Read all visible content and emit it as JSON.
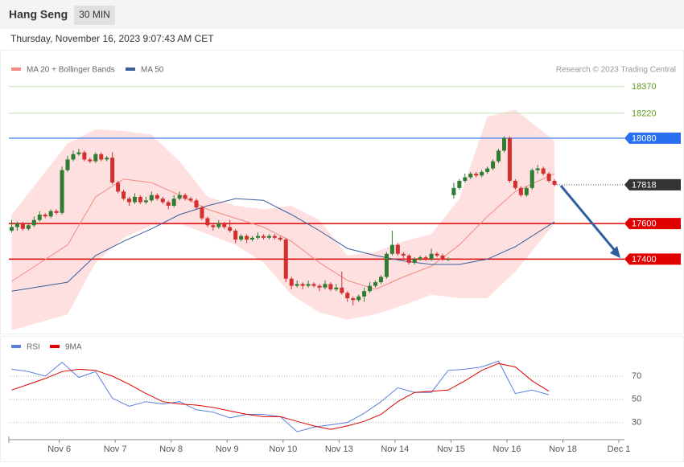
{
  "header": {
    "title": "Hang Seng",
    "interval": "30 MIN",
    "timestamp": "Thursday, November 16, 2023 9:07:43 AM CET"
  },
  "chart_data": [
    {
      "type": "candlestick",
      "credit": "Research © 2023 Trading Central",
      "up_color": "#2e7d32",
      "down_color": "#d32f2f",
      "xlim": [
        -0.5,
        109.5
      ],
      "ylim": [
        16995,
        18450
      ],
      "ohlc": [
        [
          17560,
          17620,
          17550,
          17580
        ],
        [
          17580,
          17610,
          17560,
          17600
        ],
        [
          17600,
          17610,
          17560,
          17570
        ],
        [
          17570,
          17600,
          17560,
          17590
        ],
        [
          17590,
          17640,
          17580,
          17620
        ],
        [
          17620,
          17670,
          17610,
          17650
        ],
        [
          17650,
          17660,
          17630,
          17640
        ],
        [
          17640,
          17680,
          17630,
          17670
        ],
        [
          17670,
          17680,
          17650,
          17660
        ],
        [
          17660,
          17920,
          17650,
          17900
        ],
        [
          17900,
          17980,
          17890,
          17960
        ],
        [
          17960,
          18010,
          17950,
          17990
        ],
        [
          17990,
          18020,
          17980,
          18000
        ],
        [
          18000,
          18010,
          17950,
          17960
        ],
        [
          17960,
          17970,
          17940,
          17950
        ],
        [
          17950,
          18000,
          17940,
          17990
        ],
        [
          17990,
          18000,
          17950,
          17960
        ],
        [
          17960,
          17980,
          17950,
          17970
        ],
        [
          17970,
          18000,
          17820,
          17830
        ],
        [
          17830,
          17840,
          17770,
          17780
        ],
        [
          17780,
          17790,
          17730,
          17740
        ],
        [
          17740,
          17750,
          17700,
          17720
        ],
        [
          17720,
          17770,
          17710,
          17750
        ],
        [
          17750,
          17760,
          17710,
          17720
        ],
        [
          17720,
          17750,
          17710,
          17730
        ],
        [
          17730,
          17780,
          17720,
          17760
        ],
        [
          17760,
          17770,
          17730,
          17740
        ],
        [
          17740,
          17750,
          17710,
          17720
        ],
        [
          17720,
          17730,
          17680,
          17700
        ],
        [
          17700,
          17760,
          17690,
          17740
        ],
        [
          17740,
          17780,
          17730,
          17760
        ],
        [
          17760,
          17770,
          17730,
          17740
        ],
        [
          17740,
          17750,
          17720,
          17730
        ],
        [
          17730,
          17740,
          17680,
          17690
        ],
        [
          17690,
          17700,
          17620,
          17630
        ],
        [
          17630,
          17640,
          17580,
          17590
        ],
        [
          17590,
          17600,
          17560,
          17580
        ],
        [
          17580,
          17620,
          17570,
          17600
        ],
        [
          17600,
          17610,
          17570,
          17580
        ],
        [
          17580,
          17620,
          17550,
          17560
        ],
        [
          17560,
          17570,
          17490,
          17510
        ],
        [
          17510,
          17540,
          17500,
          17530
        ],
        [
          17530,
          17540,
          17490,
          17510
        ],
        [
          17510,
          17530,
          17500,
          17520
        ],
        [
          17520,
          17550,
          17510,
          17530
        ],
        [
          17530,
          17540,
          17510,
          17520
        ],
        [
          17520,
          17540,
          17510,
          17530
        ],
        [
          17530,
          17540,
          17510,
          17520
        ],
        [
          17520,
          17530,
          17500,
          17510
        ],
        [
          17510,
          17520,
          17270,
          17290
        ],
        [
          17290,
          17300,
          17230,
          17250
        ],
        [
          17250,
          17280,
          17240,
          17260
        ],
        [
          17260,
          17270,
          17230,
          17250
        ],
        [
          17250,
          17280,
          17240,
          17260
        ],
        [
          17260,
          17270,
          17240,
          17250
        ],
        [
          17250,
          17260,
          17220,
          17240
        ],
        [
          17240,
          17280,
          17230,
          17260
        ],
        [
          17260,
          17270,
          17220,
          17230
        ],
        [
          17230,
          17260,
          17220,
          17240
        ],
        [
          17240,
          17330,
          17200,
          17210
        ],
        [
          17210,
          17220,
          17160,
          17180
        ],
        [
          17180,
          17190,
          17140,
          17170
        ],
        [
          17170,
          17200,
          17160,
          17190
        ],
        [
          17190,
          17240,
          17160,
          17220
        ],
        [
          17220,
          17270,
          17210,
          17250
        ],
        [
          17250,
          17280,
          17240,
          17270
        ],
        [
          17270,
          17310,
          17260,
          17300
        ],
        [
          17300,
          17440,
          17290,
          17430
        ],
        [
          17430,
          17560,
          17420,
          17480
        ],
        [
          17480,
          17490,
          17420,
          17430
        ],
        [
          17430,
          17440,
          17400,
          17420
        ],
        [
          17420,
          17430,
          17370,
          17380
        ],
        [
          17380,
          17410,
          17370,
          17400
        ],
        [
          17400,
          17420,
          17390,
          17410
        ],
        [
          17410,
          17420,
          17390,
          17400
        ],
        [
          17400,
          17460,
          17390,
          17430
        ],
        [
          17430,
          17440,
          17410,
          17420
        ],
        [
          17420,
          17430,
          17390,
          17400
        ],
        [
          17400,
          17410,
          17390,
          17400
        ],
        [
          17760,
          17830,
          17740,
          17800
        ],
        [
          17800,
          17850,
          17790,
          17840
        ],
        [
          17840,
          17880,
          17830,
          17860
        ],
        [
          17860,
          17890,
          17850,
          17880
        ],
        [
          17880,
          17890,
          17860,
          17870
        ],
        [
          17870,
          17900,
          17860,
          17890
        ],
        [
          17890,
          17920,
          17880,
          17910
        ],
        [
          17910,
          17960,
          17900,
          17950
        ],
        [
          17950,
          18020,
          17940,
          18010
        ],
        [
          18010,
          18090,
          18000,
          18080
        ],
        [
          18080,
          18090,
          17830,
          17840
        ],
        [
          17840,
          17850,
          17790,
          17800
        ],
        [
          17800,
          17810,
          17750,
          17760
        ],
        [
          17760,
          17810,
          17750,
          17800
        ],
        [
          17800,
          17910,
          17790,
          17900
        ],
        [
          17900,
          17930,
          17880,
          17910
        ],
        [
          17910,
          17920,
          17870,
          17880
        ],
        [
          17880,
          17890,
          17830,
          17840
        ],
        [
          17840,
          17850,
          17810,
          17818
        ]
      ],
      "x": [
        0,
        10,
        15,
        20,
        25,
        30,
        35,
        40,
        45,
        50,
        55,
        60,
        65,
        70,
        75,
        80,
        85,
        90,
        97
      ],
      "series": [
        {
          "name": "MA 20 + Bollinger Bands",
          "color": "#f28b82",
          "band_color": "#fde0df",
          "values": [
            17275,
            17480,
            17750,
            17850,
            17830,
            17760,
            17680,
            17630,
            17580,
            17500,
            17380,
            17280,
            17230,
            17300,
            17360,
            17480,
            17640,
            17780,
            17880
          ],
          "upper": [
            17650,
            18050,
            18130,
            18120,
            18100,
            17950,
            17750,
            17700,
            17680,
            17700,
            17620,
            17420,
            17440,
            17500,
            17540,
            17740,
            18200,
            18240,
            18065
          ],
          "lower": [
            17000,
            17090,
            17380,
            17520,
            17590,
            17600,
            17540,
            17480,
            17380,
            17200,
            17100,
            17060,
            17090,
            17140,
            17200,
            17180,
            17180,
            17330,
            17600
          ]
        },
        {
          "name": "MA 50",
          "color": "#3a5f9f",
          "values": [
            17220,
            17270,
            17420,
            17500,
            17570,
            17650,
            17700,
            17740,
            17730,
            17650,
            17560,
            17460,
            17420,
            17390,
            17370,
            17370,
            17400,
            17470,
            17610
          ]
        }
      ],
      "levels": [
        {
          "value": 18370,
          "color": "#5a9e1a",
          "line_color": "#c5e0b0",
          "box": false,
          "dash": false
        },
        {
          "value": 18220,
          "color": "#5a9e1a",
          "line_color": "#c5e0b0",
          "box": false,
          "dash": false
        },
        {
          "value": 18080,
          "color": "#2a6ff0",
          "line_color": "#5b8ff0",
          "box": true,
          "dash": false
        },
        {
          "value": 17818,
          "color": "#333333",
          "line_color": "#555555",
          "box": true,
          "dash": true
        },
        {
          "value": 17600,
          "color": "#e00000",
          "line_color": "#e00000",
          "box": true,
          "dash": false
        },
        {
          "value": 17400,
          "color": "#e00000",
          "line_color": "#e00000",
          "box": true,
          "dash": false
        }
      ]
    },
    {
      "type": "line",
      "xlim": [
        -0.5,
        109.5
      ],
      "ylim": [
        20,
        86
      ],
      "yticks": [
        30,
        50,
        70
      ],
      "grid": true,
      "xticks": [
        {
          "value": 8.5,
          "label": "Nov 6"
        },
        {
          "value": 18.5,
          "label": "Nov 7"
        },
        {
          "value": 28.5,
          "label": "Nov 8"
        },
        {
          "value": 38.5,
          "label": "Nov 9"
        },
        {
          "value": 48.5,
          "label": "Nov 10"
        },
        {
          "value": 58.5,
          "label": "Nov 13"
        },
        {
          "value": 68.5,
          "label": "Nov 14"
        },
        {
          "value": 78.5,
          "label": "Nov 15"
        },
        {
          "value": 88.5,
          "label": "Nov 16"
        },
        {
          "value": 98.5,
          "label": "Nov 18"
        },
        {
          "value": 108.5,
          "label": "Dec 1"
        }
      ],
      "x": [
        0,
        3,
        6,
        9,
        12,
        15,
        18,
        21,
        24,
        27,
        30,
        33,
        36,
        39,
        42,
        45,
        48,
        51,
        54,
        57,
        60,
        63,
        66,
        69,
        72,
        75,
        78,
        81,
        84,
        87,
        90,
        93,
        96
      ],
      "series": [
        {
          "name": "RSI",
          "color": "#5b7fe0",
          "values": [
            76,
            74,
            70,
            82,
            69,
            74,
            51,
            44,
            48,
            46,
            48,
            41,
            39,
            34,
            37,
            37,
            35,
            22,
            26,
            28,
            30,
            38,
            48,
            60,
            56,
            56,
            75,
            76,
            78,
            83,
            55,
            58,
            54
          ]
        },
        {
          "name": "9MA",
          "color": "#e00000",
          "values": [
            58,
            63,
            68,
            74,
            76,
            75,
            70,
            63,
            55,
            48,
            46,
            45,
            43,
            40,
            37,
            35,
            35,
            31,
            27,
            24,
            27,
            31,
            37,
            48,
            56,
            57,
            58,
            66,
            75,
            81,
            78,
            66,
            57
          ]
        }
      ]
    }
  ]
}
